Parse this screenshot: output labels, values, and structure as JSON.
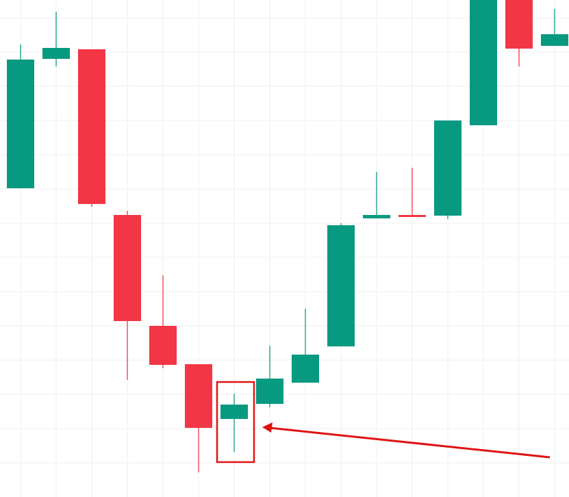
{
  "chart_data": {
    "type": "candlestick",
    "open": [
      451,
      640,
      654,
      412,
      250,
      194,
      114,
      136,
      167,
      220,
      407,
      412,
      411,
      543,
      735,
      659
    ],
    "high": [
      661,
      709,
      654,
      418,
      324,
      194,
      151,
      221,
      275,
      400,
      475,
      481,
      550,
      740,
      740,
      713
    ],
    "low": [
      451,
      629,
      424,
      171,
      188,
      36,
      66,
      131,
      167,
      220,
      407,
      409,
      406,
      543,
      629,
      659
    ],
    "close": [
      639,
      656,
      428,
      257,
      193,
      101,
      135,
      173,
      208,
      397,
      412,
      409,
      550,
      740,
      655,
      676
    ],
    "up_color": "#089981",
    "down_color": "#f23645",
    "ylim": [
      0,
      726
    ],
    "yticks": [
      50,
      100,
      150,
      200,
      250,
      300,
      350,
      400,
      450,
      500,
      550,
      600,
      650,
      700
    ],
    "grid": true
  }
}
